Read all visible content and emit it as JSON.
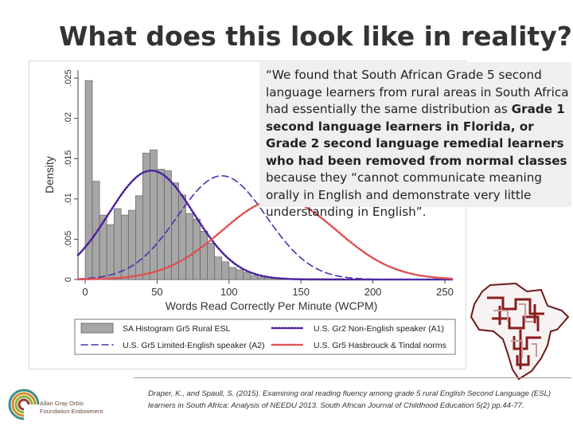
{
  "slide": {
    "title": "What does this look like in reality?",
    "quote": {
      "open": "“We found that South African Grade 5 second language learners from rural areas in South Africa had essentially the same distribution as ",
      "bold1": "Grade 1 second language learners in Florida, or Grade 2 second language remedial learners who had been removed from normal classes",
      "mid": " because they “cannot communicate meaning orally in English and demonstrate very little understanding in English”."
    },
    "citation": "Draper, K., and Spaull, S. (2015). Examining oral reading fluency among grade 5 rural English Second Language (ESL) learners in South Africa: Analysis of NEEDU 2013. South African Journal of Childhood Education 5(2) pp.44-77.",
    "logo": {
      "line1": "Allan Gray Orbis",
      "line2": "Foundation Endowment"
    }
  },
  "chart_data": {
    "type": "histogram",
    "xlabel": "Words Read Correctly Per Minute (WCPM)",
    "ylabel": "Density",
    "xlim": [
      -5,
      255
    ],
    "ylim": [
      0,
      0.026
    ],
    "xticks": [
      0,
      50,
      100,
      150,
      200,
      250
    ],
    "yticks": [
      0,
      0.005,
      0.01,
      0.015,
      0.02,
      0.025
    ],
    "ytick_labels": [
      "0",
      ".005",
      ".01",
      ".015",
      ".02",
      ".025"
    ],
    "bin_width": 5,
    "histogram": {
      "name": "SA Histogram Gr5 Rural ESL",
      "bin_starts": [
        0,
        5,
        10,
        15,
        20,
        25,
        30,
        35,
        40,
        45,
        50,
        55,
        60,
        65,
        70,
        75,
        80,
        85,
        90,
        95,
        100,
        105,
        110,
        115,
        120,
        125,
        130,
        135,
        140,
        145,
        150,
        155,
        160,
        165,
        170,
        175
      ],
      "values": [
        0.0247,
        0.0122,
        0.008,
        0.0068,
        0.0088,
        0.008,
        0.0086,
        0.0104,
        0.0157,
        0.0161,
        0.0137,
        0.0135,
        0.012,
        0.0105,
        0.0082,
        0.0075,
        0.006,
        0.0045,
        0.0028,
        0.0022,
        0.0015,
        0.0012,
        0.0009,
        0.0005,
        0.0003,
        0.0003,
        0.0002,
        0.0001,
        0.0001,
        0.0001,
        0.0001,
        0.0001,
        0.0001,
        0.0001,
        0.0001,
        0.0001
      ],
      "color": "#a6a6a6"
    },
    "series": [
      {
        "name": "U.S. Gr2 Non-English speaker (A1)",
        "kind": "normal",
        "mean": 46,
        "sd": 29.5,
        "color": "#4a1f9e",
        "style": "dotted"
      },
      {
        "name": "U.S. Gr5 Limited-English speaker (A2)",
        "kind": "normal",
        "mean": 95,
        "sd": 31,
        "color": "#4b2eb0",
        "style": "dashed"
      },
      {
        "name": "U.S. Gr5 Hasbrouck & Tindal norms",
        "kind": "normal",
        "mean": 135,
        "sd": 40,
        "color": "#e05050",
        "style": "dotted"
      }
    ],
    "legend_position": "bottom"
  }
}
